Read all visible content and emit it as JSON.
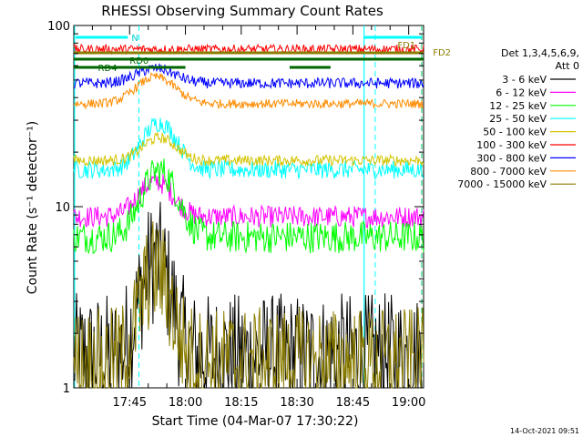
{
  "chart_data": {
    "type": "line",
    "title": "RHESSI Observing Summary Count Rates",
    "xlabel": "Start Time (04-Mar-07 17:30:22)",
    "ylabel": "Count Rate (s⁻¹ detector⁻¹)",
    "x_range_minutes_after_start": [
      0,
      94
    ],
    "x_ticks": [
      {
        "label": "17:45",
        "minute": 15
      },
      {
        "label": "18:00",
        "minute": 30
      },
      {
        "label": "18:15",
        "minute": 45
      },
      {
        "label": "18:30",
        "minute": 60
      },
      {
        "label": "18:45",
        "minute": 75
      },
      {
        "label": "19:00",
        "minute": 90
      }
    ],
    "y_scale": "log",
    "ylim": [
      1,
      100
    ],
    "y_ticks": [
      "1",
      "10",
      "100"
    ],
    "legend": {
      "placement": "right",
      "header": [
        "Det 1,3,4,5,6,9,",
        "Att 0"
      ]
    },
    "series": [
      {
        "name": "3 - 6 keV",
        "color": "#000000",
        "base": 1.5,
        "noise": 0.35,
        "peak": 3.5,
        "peak_min": 22,
        "peak_w": 5
      },
      {
        "name": "6 - 12 keV",
        "color": "#ff00ff",
        "base": 8.8,
        "noise": 0.06,
        "peak": 5,
        "peak_min": 22,
        "peak_w": 6
      },
      {
        "name": "12 - 25 keV",
        "color": "#00ff00",
        "base": 6.8,
        "noise": 0.09,
        "peak": 9,
        "peak_min": 23,
        "peak_w": 6
      },
      {
        "name": "25 - 50 keV",
        "color": "#00ffff",
        "base": 16,
        "noise": 0.05,
        "peak": 13,
        "peak_min": 23,
        "peak_w": 6
      },
      {
        "name": "50 - 100 keV",
        "color": "#d4c400",
        "base": 18,
        "noise": 0.03,
        "peak": 6,
        "peak_min": 23,
        "peak_w": 6
      },
      {
        "name": "100 - 300 keV",
        "color": "#ff0000",
        "base": 74,
        "noise": 0.025,
        "peak": 0,
        "peak_min": 0,
        "peak_w": 1
      },
      {
        "name": "300 - 800 keV",
        "color": "#0000ff",
        "base": 48,
        "noise": 0.03,
        "peak": 10,
        "peak_min": 22,
        "peak_w": 7
      },
      {
        "name": "800 - 7000 keV",
        "color": "#ff8c00",
        "base": 37,
        "noise": 0.025,
        "peak": 15,
        "peak_min": 22,
        "peak_w": 7
      },
      {
        "name": "7000 - 15000 keV",
        "color": "#8b7d00",
        "base": 1.4,
        "noise": 0.3,
        "peak": 3,
        "peak_min": 22,
        "peak_w": 5
      }
    ],
    "annotations": [
      {
        "text": "N",
        "color": "#00cccc"
      },
      {
        "text": "RD0",
        "color": "#006600"
      },
      {
        "text": "RD4",
        "color": "#006600"
      },
      {
        "text": "FD1",
        "color": "#8b7d00"
      },
      {
        "text": "FD2",
        "color": "#8b7d00"
      }
    ]
  },
  "footer": {
    "timestamp": "14-Oct-2021 09:51"
  }
}
